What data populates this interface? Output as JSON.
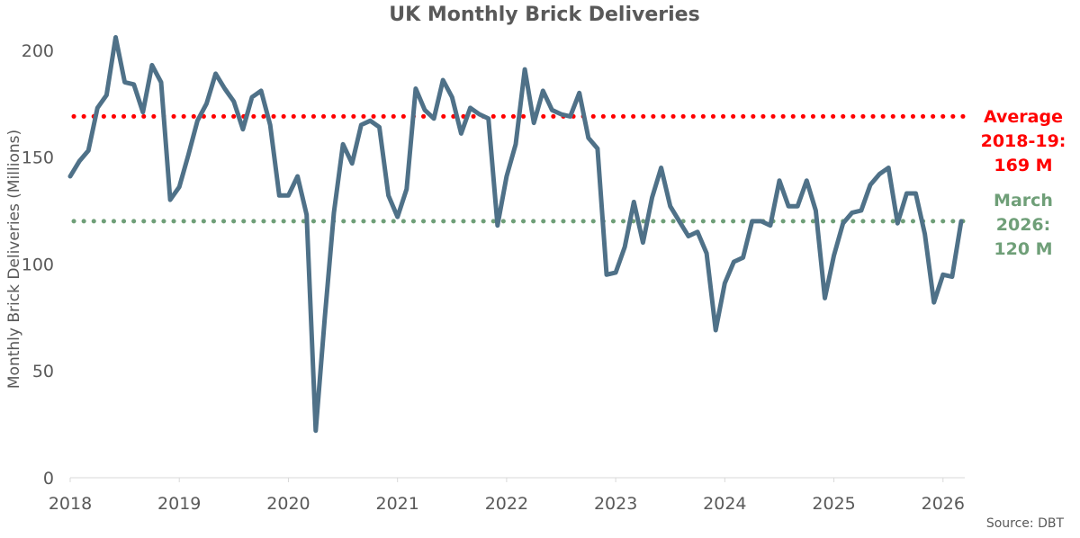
{
  "chart_data": {
    "type": "line",
    "title": "UK Monthly Brick Deliveries",
    "ylabel": "Monthly Brick Deliveries (Millions)",
    "xlabel": "",
    "ylim": [
      0,
      210
    ],
    "yticks": [
      0,
      50,
      100,
      150,
      200
    ],
    "xticks": [
      "2018",
      "2019",
      "2020",
      "2021",
      "2022",
      "2023",
      "2024",
      "2025",
      "2026"
    ],
    "x_start": "2018-01",
    "x_end": "2026-03",
    "source": "Source: DBT",
    "colors": {
      "series": "#4f7188",
      "average_line": "#ff0000",
      "march_line": "#6f9f78",
      "axis_text": "#595959"
    },
    "reference_lines": [
      {
        "value": 169,
        "style": "dotted",
        "color": "#ff0000",
        "label_lines": [
          "Average",
          "2018-19:",
          "169 M"
        ]
      },
      {
        "value": 120,
        "style": "dotted",
        "color": "#6f9f78",
        "label_lines": [
          "March",
          "2026:",
          "120 M"
        ]
      }
    ],
    "series": [
      {
        "x": [
          "2018-01",
          "2018-02",
          "2018-03",
          "2018-04",
          "2018-05",
          "2018-06",
          "2018-07",
          "2018-08",
          "2018-09",
          "2018-10",
          "2018-11",
          "2018-12",
          "2019-01",
          "2019-02",
          "2019-03",
          "2019-04",
          "2019-05",
          "2019-06",
          "2019-07",
          "2019-08",
          "2019-09",
          "2019-10",
          "2019-11",
          "2019-12",
          "2020-01",
          "2020-02",
          "2020-03",
          "2020-04",
          "2020-05",
          "2020-06",
          "2020-07",
          "2020-08",
          "2020-09",
          "2020-10",
          "2020-11",
          "2020-12",
          "2021-01",
          "2021-02",
          "2021-03",
          "2021-04",
          "2021-05",
          "2021-06",
          "2021-07",
          "2021-08",
          "2021-09",
          "2021-10",
          "2021-11",
          "2021-12",
          "2022-01",
          "2022-02",
          "2022-03",
          "2022-04",
          "2022-05",
          "2022-06",
          "2022-07",
          "2022-08",
          "2022-09",
          "2022-10",
          "2022-11",
          "2022-12",
          "2023-01",
          "2023-02",
          "2023-03",
          "2023-04",
          "2023-05",
          "2023-06",
          "2023-07",
          "2023-08",
          "2023-09",
          "2023-10",
          "2023-11",
          "2023-12",
          "2024-01",
          "2024-02",
          "2024-03",
          "2024-04",
          "2024-05",
          "2024-06",
          "2024-07",
          "2024-08",
          "2024-09",
          "2024-10",
          "2024-11",
          "2024-12",
          "2025-01",
          "2025-02",
          "2025-03",
          "2025-04",
          "2025-05",
          "2025-06",
          "2025-07",
          "2025-08",
          "2025-09",
          "2025-10",
          "2025-11",
          "2025-12",
          "2026-01",
          "2026-02",
          "2026-03"
        ],
        "values": [
          141,
          148,
          153,
          173,
          179,
          206,
          185,
          184,
          171,
          193,
          185,
          130,
          136,
          151,
          167,
          175,
          189,
          182,
          176,
          163,
          178,
          181,
          165,
          132,
          132,
          141,
          123,
          22,
          75,
          124,
          156,
          147,
          165,
          167,
          164,
          132,
          122,
          135,
          182,
          172,
          168,
          186,
          178,
          161,
          173,
          170,
          168,
          118,
          141,
          156,
          191,
          166,
          181,
          172,
          170,
          169,
          180,
          159,
          154,
          95,
          96,
          108,
          129,
          110,
          131,
          145,
          127,
          120,
          113,
          115,
          105,
          69,
          91,
          101,
          103,
          120,
          120,
          118,
          139,
          127,
          127,
          139,
          125,
          84,
          104,
          119,
          124,
          125,
          137,
          142,
          145,
          119,
          133,
          133,
          114,
          82,
          95,
          94,
          120
        ]
      }
    ]
  }
}
